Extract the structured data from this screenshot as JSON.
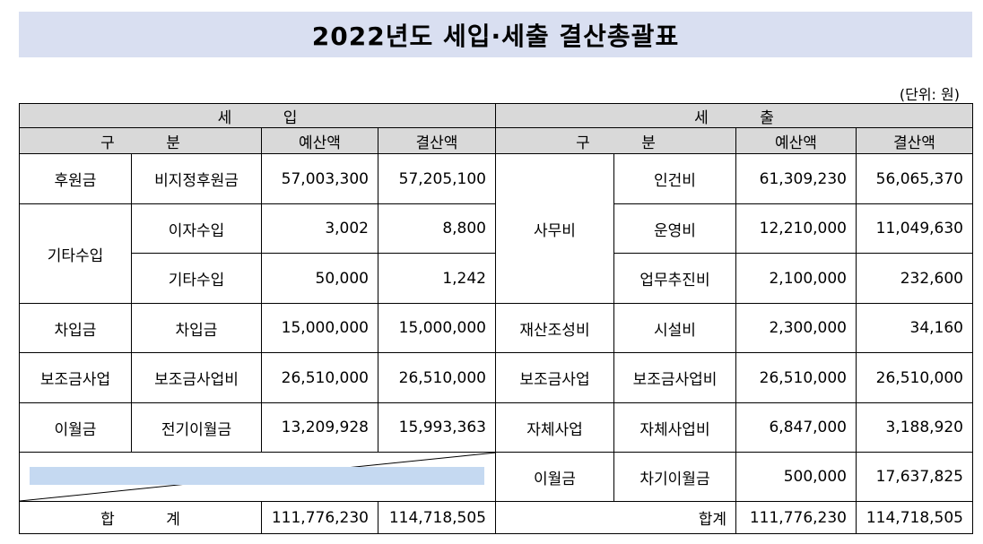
{
  "title": "2022년도 세입·세출 결산총괄표",
  "unit": "(단위: 원)",
  "income": {
    "heading": "세 입",
    "col_category": "구 분",
    "col_budget": "예산액",
    "col_settled": "결산액",
    "rows": [
      {
        "category": "후원금",
        "item": "비지정후원금",
        "budget": "57,003,300",
        "settled": "57,205,100"
      },
      {
        "category": "기타수입",
        "item": "이자수입",
        "budget": "3,002",
        "settled": "8,800"
      },
      {
        "category": "",
        "item": "기타수입",
        "budget": "50,000",
        "settled": "1,242"
      },
      {
        "category": "차입금",
        "item": "차입금",
        "budget": "15,000,000",
        "settled": "15,000,000"
      },
      {
        "category": "보조금사업",
        "item": "보조금사업비",
        "budget": "26,510,000",
        "settled": "26,510,000"
      },
      {
        "category": "이월금",
        "item": "전기이월금",
        "budget": "13,209,928",
        "settled": "15,993,363"
      }
    ],
    "total_label": "합 계",
    "total_budget": "111,776,230",
    "total_settled": "114,718,505"
  },
  "expense": {
    "heading": "세 출",
    "col_category": "구 분",
    "col_budget": "예산액",
    "col_settled": "결산액",
    "rows": [
      {
        "category": "사무비",
        "item": "인건비",
        "budget": "61,309,230",
        "settled": "56,065,370"
      },
      {
        "category": "",
        "item": "운영비",
        "budget": "12,210,000",
        "settled": "11,049,630"
      },
      {
        "category": "",
        "item": "업무추진비",
        "budget": "2,100,000",
        "settled": "232,600"
      },
      {
        "category": "재산조성비",
        "item": "시설비",
        "budget": "2,300,000",
        "settled": "34,160"
      },
      {
        "category": "보조금사업",
        "item": "보조금사업비",
        "budget": "26,510,000",
        "settled": "26,510,000"
      },
      {
        "category": "자체사업",
        "item": "자체사업비",
        "budget": "6,847,000",
        "settled": "3,188,920"
      },
      {
        "category": "이월금",
        "item": "차기이월금",
        "budget": "500,000",
        "settled": "17,637,825"
      }
    ],
    "total_label": "합계",
    "total_budget": "111,776,230",
    "total_settled": "114,718,505"
  }
}
